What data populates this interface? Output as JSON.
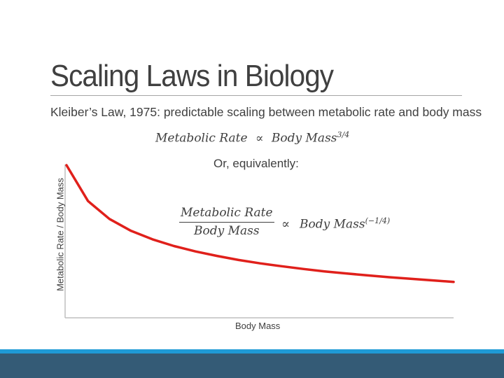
{
  "slide": {
    "title": "Scaling Laws in Biology",
    "subtitle": "Kleiber’s Law, 1975: predictable scaling between metabolic rate and body mass",
    "formula1": {
      "lhs": "Metabolic Rate",
      "symbol": "∝",
      "rhs": "Body Mass",
      "exponent": "3/4"
    },
    "equivalently": "Or, equivalently:",
    "formula2": {
      "numerator": "Metabolic Rate",
      "denominator": "Body Mass",
      "symbol": "∝",
      "rhs": "Body Mass",
      "exponent": "(−1/4)"
    }
  },
  "chart_data": {
    "type": "line",
    "title": "",
    "xlabel": "Body Mass",
    "ylabel": "Metabolic Rate / Body Mass",
    "x": [
      1,
      2,
      3,
      4,
      5,
      6,
      7,
      8,
      9,
      10,
      11,
      12,
      13,
      14,
      15,
      16,
      17,
      18,
      19
    ],
    "series": [
      {
        "name": "Metabolic Rate / Body Mass",
        "color": "#e0201b",
        "values": [
          1.0,
          0.84,
          0.76,
          0.707,
          0.669,
          0.639,
          0.615,
          0.595,
          0.577,
          0.562,
          0.549,
          0.537,
          0.526,
          0.517,
          0.508,
          0.5,
          0.493,
          0.486,
          0.479
        ]
      }
    ],
    "xlim": [
      1,
      19
    ],
    "ylim": [
      0.4,
      1.0
    ],
    "grid": false,
    "axis_color": "#bfbfbf"
  },
  "colors": {
    "text": "#404040",
    "band_light": "#1f9ad6",
    "band_dark": "#345b76"
  }
}
